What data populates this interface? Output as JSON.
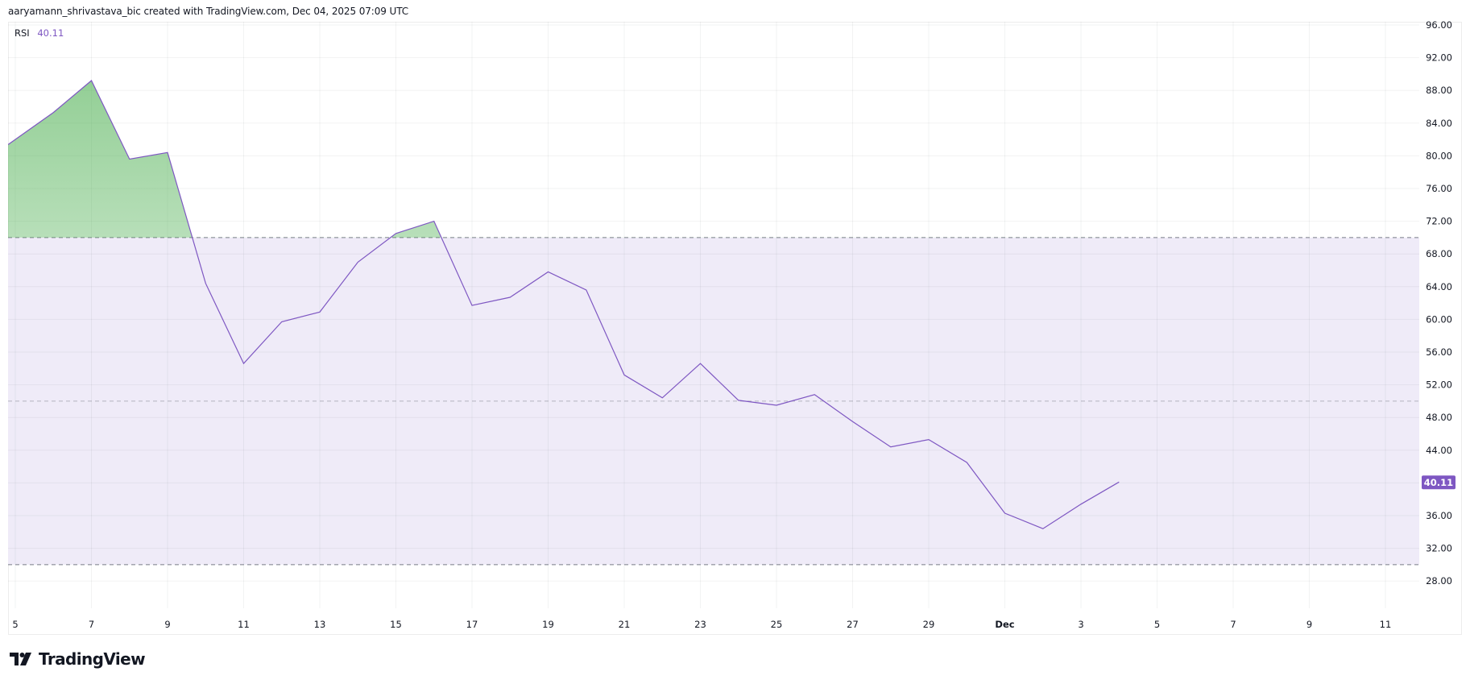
{
  "header": {
    "attribution": "aaryamann_shrivastava_bic created with TradingView.com, Dec 04, 2025 07:09 UTC"
  },
  "legend": {
    "indicator": "RSI",
    "value": "40.11"
  },
  "price_badge": {
    "value": "40.11",
    "color": "#7e57c2"
  },
  "logo": {
    "text": "TradingView"
  },
  "colors": {
    "line": "#7e57c2",
    "band_fill": "#efebf8",
    "overbought_fill": "#4caf50",
    "grid": "#f0f0f3",
    "dash": "#787b86"
  },
  "chart_data": {
    "type": "line",
    "title": "RSI",
    "xlabel": "",
    "ylabel": "",
    "ylim": [
      26,
      96
    ],
    "y_ticks": [
      "96.00",
      "92.00",
      "88.00",
      "84.00",
      "80.00",
      "76.00",
      "72.00",
      "68.00",
      "64.00",
      "60.00",
      "56.00",
      "52.00",
      "48.00",
      "44.00",
      "40.11",
      "36.00",
      "32.00",
      "28.00"
    ],
    "x_ticks": [
      "5",
      "7",
      "9",
      "11",
      "13",
      "15",
      "17",
      "19",
      "21",
      "23",
      "25",
      "27",
      "29",
      "Dec",
      "3",
      "5",
      "7",
      "9",
      "11"
    ],
    "levels": {
      "upper": 70,
      "middle": 50,
      "lower": 30
    },
    "grid": true,
    "legend_position": "top-left",
    "categories": [
      "Nov 5",
      "Nov 6",
      "Nov 7",
      "Nov 8",
      "Nov 9",
      "Nov 10",
      "Nov 11",
      "Nov 12",
      "Nov 13",
      "Nov 14",
      "Nov 15",
      "Nov 16",
      "Nov 17",
      "Nov 18",
      "Nov 19",
      "Nov 20",
      "Nov 21",
      "Nov 22",
      "Nov 23",
      "Nov 24",
      "Nov 25",
      "Nov 26",
      "Nov 27",
      "Nov 28",
      "Nov 29",
      "Nov 30",
      "Dec 1",
      "Dec 2",
      "Dec 3",
      "Dec 4"
    ],
    "series": [
      {
        "name": "RSI",
        "values": [
          82.0,
          85.3,
          89.2,
          79.6,
          80.4,
          64.4,
          54.6,
          59.7,
          60.9,
          67.0,
          70.5,
          72.0,
          61.7,
          62.7,
          65.8,
          63.6,
          53.2,
          50.4,
          54.6,
          50.1,
          49.5,
          50.8,
          47.5,
          44.4,
          45.3,
          42.5,
          36.3,
          34.4,
          37.4,
          40.11
        ]
      }
    ],
    "last_value": 40.11
  }
}
